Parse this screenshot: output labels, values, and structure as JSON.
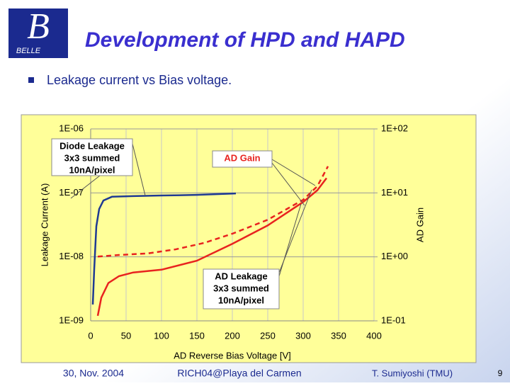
{
  "logo": {
    "letter": "B",
    "text": "BELLE"
  },
  "title": "Development of HPD and HAPD",
  "bullet": "Leakage current vs Bias voltage.",
  "footer": {
    "date": "30, Nov. 2004",
    "venue": "RICH04@Playa del Carmen",
    "author": "T. Sumiyoshi (TMU)",
    "page": "9"
  },
  "chart_data": {
    "type": "line",
    "xlabel": "AD Reverse Bias Voltage [V]",
    "ylabel": "Leakage Current (A)",
    "y2label": "AD Gain",
    "xlim": [
      0,
      400
    ],
    "xticks": [
      0,
      50,
      100,
      150,
      200,
      250,
      300,
      350,
      400
    ],
    "ylim": [
      1e-09,
      1e-06
    ],
    "ylog": true,
    "yticks": [
      {
        "value": 1e-09,
        "label": "1E-09"
      },
      {
        "value": 1e-08,
        "label": "1E-08"
      },
      {
        "value": 1e-07,
        "label": "1E-07"
      },
      {
        "value": 1e-06,
        "label": "1E-06"
      }
    ],
    "y2lim": [
      0.1,
      100
    ],
    "y2log": true,
    "y2ticks": [
      {
        "value": 0.1,
        "label": "1E-01"
      },
      {
        "value": 1,
        "label": "1E+00"
      },
      {
        "value": 10,
        "label": "1E+01"
      },
      {
        "value": 100,
        "label": "1E+02"
      }
    ],
    "grid": true,
    "series": [
      {
        "name": "Diode Leakage",
        "annotation": [
          "3x3 summed",
          "10nA/pixel"
        ],
        "color": "#1f3a93",
        "dash": false,
        "x": [
          3,
          5,
          8,
          12,
          18,
          30,
          60,
          100,
          150,
          205
        ],
        "values": [
          1.8e-09,
          6.4e-09,
          3e-08,
          5.6e-08,
          7.6e-08,
          8.7e-08,
          8.9e-08,
          9.1e-08,
          9.3e-08,
          9.8e-08
        ]
      },
      {
        "name": "AD Leakage",
        "annotation": [
          "3x3 summed",
          "10nA/pixel"
        ],
        "color": "#e8231f",
        "dash": false,
        "x": [
          10,
          15,
          25,
          40,
          60,
          100,
          150,
          200,
          250,
          300,
          320,
          333
        ],
        "values": [
          1.2e-09,
          2.3e-09,
          3.9e-09,
          5e-09,
          5.7e-09,
          6.3e-09,
          8.7e-09,
          1.6e-08,
          3.1e-08,
          7.2e-08,
          1.1e-07,
          1.7e-07
        ]
      },
      {
        "name": "AD Gain",
        "color": "#e8231f",
        "dash": true,
        "axis": "y2",
        "x": [
          10,
          40,
          80,
          120,
          160,
          200,
          250,
          300,
          320,
          335
        ],
        "values": [
          1.01,
          1.07,
          1.13,
          1.31,
          1.65,
          2.3,
          3.8,
          7.8,
          12.7,
          26
        ]
      }
    ]
  }
}
